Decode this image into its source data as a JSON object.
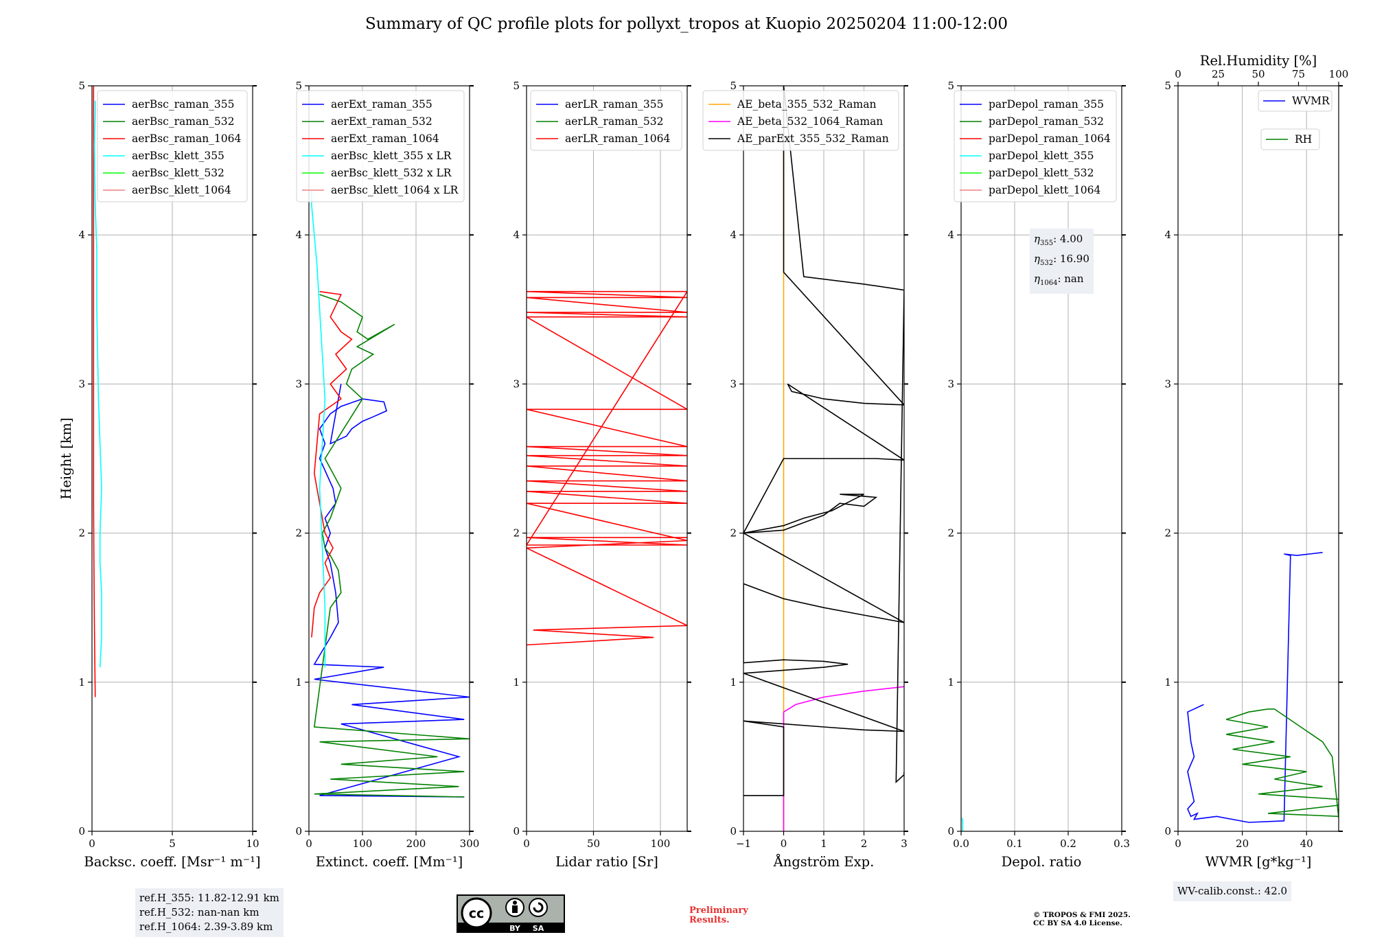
{
  "title": "Summary of QC profile plots for pollyxt_tropos at Kuopio 20250204 11:00-12:00",
  "colors": {
    "blue": "#0000ff",
    "green": "#008000",
    "red": "#ff0000",
    "cyan": "#00ffff",
    "lime": "#00ff00",
    "salmon": "#f08080",
    "orange": "#ffa500",
    "magenta": "#ff00ff",
    "black": "#000000",
    "grid": "#b0b0b0"
  },
  "chart_data": [
    {
      "type": "line",
      "xlabel": "Backsc. coeff. [Msr⁻¹ m⁻¹]",
      "ylabel": "Height [km]",
      "xlim": [
        0,
        10
      ],
      "ylim": [
        0,
        5
      ],
      "xticks": [
        0,
        5,
        10
      ],
      "yticks": [
        0,
        1,
        2,
        3,
        4,
        5
      ],
      "grid": true,
      "legend_position": "top-right",
      "series": [
        {
          "name": "aerBsc_raman_355",
          "color": "#0000ff",
          "x": [],
          "y": []
        },
        {
          "name": "aerBsc_raman_532",
          "color": "#008000",
          "x": [],
          "y": []
        },
        {
          "name": "aerBsc_raman_1064",
          "color": "#ff0000",
          "x": [
            0.2,
            0.18,
            0.15,
            0.12,
            0.1,
            0.1,
            0.1,
            0.1,
            0.1,
            0.1,
            0.1,
            0.1,
            0.1
          ],
          "y": [
            0.9,
            1.1,
            1.4,
            1.8,
            2.2,
            2.6,
            3.0,
            3.4,
            3.8,
            4.2,
            4.5,
            4.8,
            5.0
          ]
        },
        {
          "name": "aerBsc_klett_355",
          "color": "#00ffff",
          "x": [
            0.5,
            0.6,
            0.6,
            0.5,
            0.5,
            0.6,
            0.5,
            0.4,
            0.35,
            0.3,
            0.3,
            0.2,
            0.15,
            0.2,
            0.2
          ],
          "y": [
            1.1,
            1.3,
            1.6,
            1.8,
            2.0,
            2.3,
            2.6,
            2.9,
            3.2,
            3.5,
            3.9,
            4.2,
            4.6,
            4.8,
            4.9
          ]
        },
        {
          "name": "aerBsc_klett_532",
          "color": "#00ff00",
          "x": [],
          "y": []
        },
        {
          "name": "aerBsc_klett_1064",
          "color": "#f08080",
          "x": [],
          "y": []
        }
      ]
    },
    {
      "type": "line",
      "xlabel": "Extinct. coeff. [Mm⁻¹]",
      "ylabel": "",
      "xlim": [
        0,
        300
      ],
      "ylim": [
        0,
        5
      ],
      "xticks": [
        0,
        100,
        200,
        300
      ],
      "yticks": [
        0,
        1,
        2,
        3,
        4,
        5
      ],
      "grid": true,
      "legend_position": "top-right",
      "series": [
        {
          "name": "aerExt_raman_355",
          "color": "#0000ff",
          "x": [
            290,
            20,
            280,
            60,
            290,
            80,
            300,
            10,
            140,
            10,
            40,
            55,
            50,
            40,
            30,
            40,
            30,
            50,
            45,
            20,
            30,
            20,
            40,
            60,
            100,
            140,
            145,
            120,
            100,
            80,
            70,
            40,
            60
          ],
          "y": [
            0.23,
            0.24,
            0.5,
            0.72,
            0.75,
            0.85,
            0.9,
            1.02,
            1.1,
            1.12,
            1.3,
            1.4,
            1.6,
            1.8,
            1.9,
            2.0,
            2.1,
            2.2,
            2.3,
            2.5,
            2.6,
            2.7,
            2.8,
            2.85,
            2.9,
            2.88,
            2.82,
            2.78,
            2.75,
            2.7,
            2.65,
            2.6,
            3.0
          ]
        },
        {
          "name": "aerExt_raman_532",
          "color": "#008000",
          "x": [
            290,
            10,
            280,
            40,
            290,
            60,
            240,
            20,
            300,
            10,
            40,
            60,
            55,
            40,
            30,
            25,
            40,
            60,
            30,
            100,
            70,
            80,
            120,
            90,
            160,
            110,
            90,
            100,
            60,
            20
          ],
          "y": [
            0.23,
            0.25,
            0.3,
            0.35,
            0.4,
            0.45,
            0.5,
            0.6,
            0.62,
            0.7,
            1.5,
            1.6,
            1.75,
            1.85,
            1.9,
            2.0,
            2.1,
            2.3,
            2.5,
            2.9,
            3.0,
            3.1,
            3.2,
            3.25,
            3.4,
            3.3,
            3.35,
            3.45,
            3.55,
            3.6
          ]
        },
        {
          "name": "aerExt_raman_1064",
          "color": "#ff0000",
          "x": [
            5,
            10,
            20,
            40,
            30,
            45,
            30,
            25,
            20,
            10,
            20,
            60,
            40,
            70,
            50,
            80,
            60,
            50,
            40,
            60,
            20
          ],
          "y": [
            1.3,
            1.5,
            1.6,
            1.7,
            1.8,
            1.9,
            2.0,
            2.1,
            2.2,
            2.4,
            2.8,
            2.9,
            3.0,
            3.1,
            3.2,
            3.3,
            3.35,
            3.4,
            3.45,
            3.6,
            3.62
          ]
        },
        {
          "name": "aerBsc_klett_355 x LR",
          "color": "#00ffff",
          "x": [
            30,
            30,
            25,
            20,
            25,
            30,
            25,
            20,
            15,
            10,
            5,
            5
          ],
          "y": [
            1.1,
            1.5,
            1.9,
            2.3,
            2.6,
            2.9,
            3.2,
            3.5,
            3.8,
            4.0,
            4.2,
            4.3
          ]
        },
        {
          "name": "aerBsc_klett_532 x LR",
          "color": "#00ff00",
          "x": [],
          "y": []
        },
        {
          "name": "aerBsc_klett_1064 x LR",
          "color": "#f08080",
          "x": [],
          "y": []
        }
      ]
    },
    {
      "type": "line",
      "xlabel": "Lidar ratio [Sr]",
      "ylabel": "",
      "xlim": [
        0,
        120
      ],
      "ylim": [
        0,
        5
      ],
      "xticks": [
        0,
        50,
        100
      ],
      "yticks": [
        0,
        1,
        2,
        3,
        4,
        5
      ],
      "grid": true,
      "legend_position": "top-right",
      "series": [
        {
          "name": "aerLR_raman_355",
          "color": "#0000ff",
          "x": [],
          "y": []
        },
        {
          "name": "aerLR_raman_532",
          "color": "#008000",
          "x": [],
          "y": []
        },
        {
          "name": "aerLR_raman_1064",
          "color": "#ff0000",
          "x": [
            0,
            95,
            5,
            120,
            0,
            120,
            0,
            120,
            0,
            120,
            0,
            120,
            0,
            120,
            0,
            120,
            0,
            120,
            0,
            120,
            0,
            120,
            0,
            120,
            0,
            120,
            0,
            120,
            0,
            120,
            0,
            120
          ],
          "y": [
            1.25,
            1.3,
            1.35,
            1.38,
            1.9,
            1.95,
            2.2,
            2.2,
            2.28,
            2.28,
            2.35,
            2.35,
            2.45,
            2.45,
            2.52,
            2.52,
            2.58,
            2.58,
            2.83,
            2.83,
            3.45,
            3.45,
            3.48,
            3.48,
            3.58,
            3.58,
            3.62,
            3.62,
            1.92,
            1.92,
            1.97,
            1.97
          ]
        }
      ]
    },
    {
      "type": "line",
      "xlabel": "Ångström Exp.",
      "ylabel": "",
      "xlim": [
        -1,
        3
      ],
      "ylim": [
        0,
        5
      ],
      "xticks": [
        -1,
        0,
        1,
        2,
        3
      ],
      "yticks": [
        0,
        1,
        2,
        3,
        4,
        5
      ],
      "grid": true,
      "legend_position": "top-right",
      "series": [
        {
          "name": "AE_beta_355_532_Raman",
          "color": "#ffa500",
          "x": [
            0,
            0
          ],
          "y": [
            0,
            5
          ]
        },
        {
          "name": "AE_beta_532_1064_Raman",
          "color": "#ff00ff",
          "x": [
            0,
            0,
            0.3,
            1,
            2,
            3
          ],
          "y": [
            0,
            0.8,
            0.85,
            0.9,
            0.94,
            0.97
          ]
        },
        {
          "name": "AE_parExt_355_532_Raman",
          "color": "#000000",
          "x": [
            -1,
            0,
            0,
            -1,
            0,
            1,
            2,
            3,
            -1,
            0,
            1,
            1.6,
            1,
            0,
            -1,
            -1,
            0,
            1,
            2,
            3,
            -1,
            0,
            0.3,
            1,
            1.4,
            2,
            2.3,
            1.4,
            2,
            1.7,
            1.2,
            0.5,
            0,
            -1,
            0,
            2.3,
            3,
            0.1,
            0.2,
            1,
            2,
            3,
            0,
            0,
            0.5,
            2,
            3,
            2.8,
            3,
            3
          ],
          "y": [
            0.24,
            0.24,
            0.7,
            0.74,
            0.72,
            0.7,
            0.68,
            0.67,
            1.06,
            1.08,
            1.1,
            1.12,
            1.14,
            1.15,
            1.13,
            1.66,
            1.56,
            1.5,
            1.45,
            1.4,
            2.0,
            2.02,
            2.05,
            2.12,
            2.2,
            2.18,
            2.24,
            2.26,
            2.26,
            2.22,
            2.15,
            2.1,
            2.05,
            2.0,
            2.5,
            2.5,
            2.49,
            3.0,
            2.95,
            2.9,
            2.87,
            2.86,
            3.75,
            5.0,
            3.72,
            3.67,
            3.63,
            0.33,
            0.38,
            0.4
          ]
        }
      ]
    },
    {
      "type": "line",
      "xlabel": "Depol. ratio",
      "ylabel": "",
      "xlim": [
        0,
        0.3
      ],
      "ylim": [
        0,
        5
      ],
      "xticks": [
        0.0,
        0.1,
        0.2,
        0.3
      ],
      "yticks": [
        0,
        1,
        2,
        3,
        4,
        5
      ],
      "grid": true,
      "legend_position": "top-right",
      "series": [
        {
          "name": "parDepol_raman_355",
          "color": "#0000ff",
          "x": [],
          "y": []
        },
        {
          "name": "parDepol_raman_532",
          "color": "#008000",
          "x": [],
          "y": []
        },
        {
          "name": "parDepol_raman_1064",
          "color": "#ff0000",
          "x": [],
          "y": []
        },
        {
          "name": "parDepol_klett_355",
          "color": "#00ffff",
          "x": [
            0.003,
            0.003,
            0.002
          ],
          "y": [
            0.0,
            0.06,
            0.09
          ]
        },
        {
          "name": "parDepol_klett_532",
          "color": "#00ff00",
          "x": [],
          "y": []
        },
        {
          "name": "parDepol_klett_1064",
          "color": "#f08080",
          "x": [],
          "y": []
        }
      ]
    },
    {
      "type": "line",
      "xlabel": "WVMR [g*kg⁻¹]",
      "ylabel": "",
      "xlim": [
        0,
        50
      ],
      "ylim": [
        0,
        5
      ],
      "xticks": [
        0,
        20,
        40
      ],
      "yticks": [
        0,
        1,
        2,
        3,
        4,
        5
      ],
      "grid": true,
      "x2label": "Rel.Humidity [%]",
      "x2lim": [
        0,
        100
      ],
      "x2ticks": [
        0,
        25,
        50,
        75,
        100
      ],
      "legend_position": "top-right",
      "series": [
        {
          "name": "WVMR",
          "color": "#0000ff",
          "x": [
            8,
            3,
            4,
            5,
            3,
            4,
            5,
            3,
            4,
            6,
            5,
            12,
            22,
            33,
            35,
            33,
            37,
            41,
            45
          ],
          "y": [
            0.85,
            0.8,
            0.6,
            0.5,
            0.4,
            0.3,
            0.2,
            0.15,
            0.1,
            0.12,
            0.08,
            0.1,
            0.06,
            0.07,
            1.85,
            1.86,
            1.85,
            1.86,
            1.87
          ]
        },
        {
          "name": "RH",
          "color": "#008000",
          "x": [
            50,
            28,
            60,
            25,
            45,
            30,
            40,
            20,
            35,
            17,
            30,
            15,
            28,
            15,
            22,
            28,
            30,
            45,
            48,
            50
          ],
          "y": [
            0.1,
            0.12,
            0.2,
            0.25,
            0.3,
            0.35,
            0.4,
            0.45,
            0.5,
            0.55,
            0.6,
            0.65,
            0.7,
            0.75,
            0.8,
            0.82,
            0.82,
            0.6,
            0.5,
            0.09
          ]
        }
      ]
    }
  ],
  "info": {
    "refH": [
      "ref.H_355: 11.82-12.91 km",
      "ref.H_532: nan-nan km",
      "ref.H_1064: 2.39-3.89 km"
    ],
    "eta": {
      "e355_sym": "η",
      "e355_sub": "355",
      "e355_val": ": 4.00",
      "e532_sub": "532",
      "e532_val": ": 16.90",
      "e1064_sub": "1064",
      "e1064_val": ": nan"
    },
    "wvcalib": "WV-calib.const.: 42.0",
    "preliminary": [
      "Preliminary",
      "Results."
    ],
    "copyright": [
      "© TROPOS & FMI 2025.",
      "CC BY SA 4.0 License."
    ],
    "cc_badge": {
      "main": "cc",
      "by": "BY",
      "sa": "SA"
    }
  }
}
